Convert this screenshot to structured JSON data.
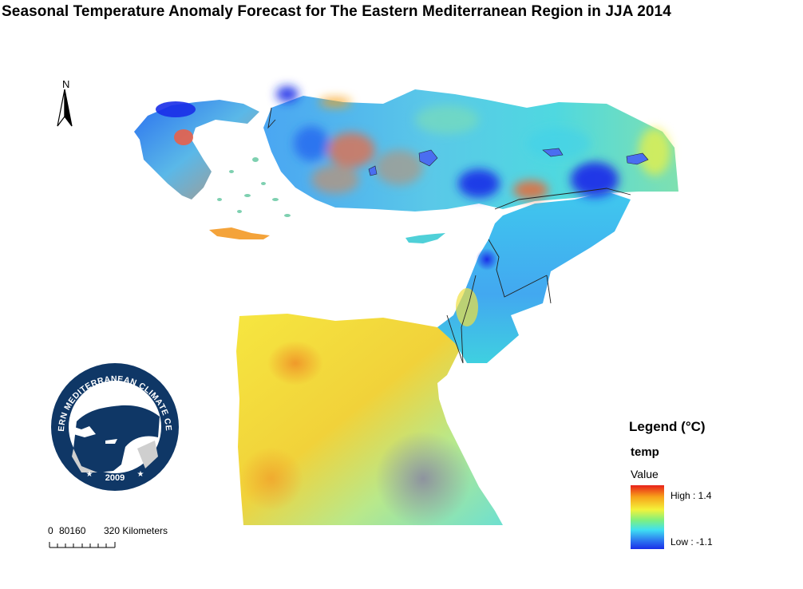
{
  "title": "Seasonal Temperature Anomaly Forecast for The Eastern Mediterranean Region in JJA 2014",
  "north_arrow": {
    "label": "N",
    "icon": "north-arrow-icon"
  },
  "logo": {
    "ring_text": "EASTERN MEDITERRANEAN CLIMATE CENTRE",
    "year": "2009",
    "colors": {
      "ring": "#0f3766",
      "land": "#0f3766",
      "sea": "#ffffff"
    }
  },
  "scale_bar": {
    "labels": [
      "0",
      "80160",
      "320 Kilometers"
    ]
  },
  "legend": {
    "title": "Legend (°C)",
    "layer": "temp",
    "field": "Value",
    "high_label": "High : 1.4",
    "low_label": "Low : -1.1",
    "high_value": 1.4,
    "low_value": -1.1,
    "colors": [
      "#e8201a",
      "#f7a11a",
      "#f4f23a",
      "#7ef080",
      "#3fe0f2",
      "#2a6ff0",
      "#1a2ee8"
    ]
  }
}
